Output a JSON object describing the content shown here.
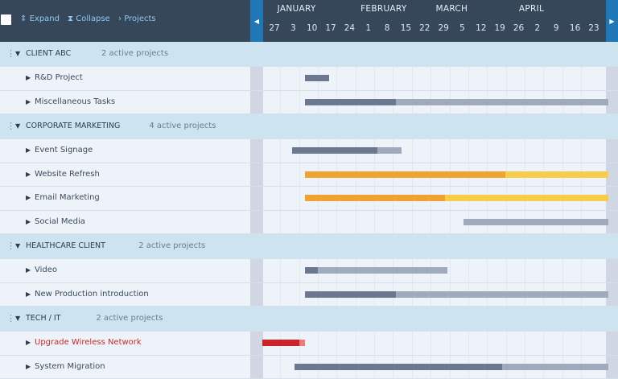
{
  "toolbar": {
    "expand": "Expand",
    "collapse": "Collapse",
    "projects": "Projects",
    "expand_icon": "up-down-chevrons",
    "collapse_icon": "collapse-chevrons",
    "projects_icon": "chevron-right"
  },
  "timeline": {
    "months": [
      {
        "label": "JANUARY",
        "date": "Jan 1"
      },
      {
        "label": "FEBRUARY",
        "date": "Feb 1"
      },
      {
        "label": "MARCH",
        "date": "Mar 1"
      },
      {
        "label": "APRIL",
        "date": "Apr 1"
      }
    ],
    "weeks": [
      "27",
      "3",
      "10",
      "17",
      "24",
      "1",
      "8",
      "15",
      "22",
      "29",
      "5",
      "12",
      "19",
      "26",
      "2",
      "9",
      "16",
      "23"
    ],
    "first_week": "Dec 27"
  },
  "colors": {
    "header": "#37475a",
    "nav": "#1f77b8",
    "group_row": "#cde3ef",
    "item_row": "#eef3fa",
    "progress_gray": "#6b7890",
    "remaining_gray": "#9fabbc",
    "progress_orange": "#f0a232",
    "remaining_yellow": "#f8cd48",
    "progress_red": "#cc2229",
    "remaining_red": "#f07878",
    "alert_text": "#c0282d"
  },
  "groups": [
    {
      "name": "CLIENT ABC",
      "count": "2 active projects",
      "items": [
        {
          "name": "R&D Project",
          "start": "Jan 12",
          "end": "Jan 21",
          "progress": 1.0,
          "color": "gray"
        },
        {
          "name": "Miscellaneous Tasks",
          "start": "Jan 12",
          "end": "May 5",
          "progress": 0.3,
          "color": "gray"
        }
      ]
    },
    {
      "name": "CORPORATE MARKETING",
      "count": "4 active projects",
      "items": [
        {
          "name": "Event Signage",
          "start": "Jan 7",
          "end": "Feb 17",
          "progress": 0.78,
          "color": "gray"
        },
        {
          "name": "Website Refresh",
          "start": "Jan 12",
          "end": "May 5",
          "progress": 0.66,
          "color": "orange"
        },
        {
          "name": "Email Marketing",
          "start": "Jan 12",
          "end": "May 5",
          "progress": 0.46,
          "color": "orange"
        },
        {
          "name": "Social Media",
          "start": "Mar 12",
          "end": "May 5",
          "progress": 0,
          "color": "gray"
        }
      ]
    },
    {
      "name": "HEALTHCARE CLIENT",
      "count": "2 active projects",
      "items": [
        {
          "name": "Video",
          "start": "Jan 12",
          "end": "Mar 6",
          "progress": 0.09,
          "color": "gray"
        },
        {
          "name": "New Production introduction",
          "start": "Jan 12",
          "end": "May 5",
          "progress": 0.3,
          "color": "gray"
        }
      ]
    },
    {
      "name": "TECH / IT",
      "count": "2 active projects",
      "items": [
        {
          "name": "Upgrade Wireless Network",
          "start": "Dec 27",
          "end": "Jan 12",
          "progress": 0.87,
          "color": "red",
          "alert": true
        },
        {
          "name": "System Migration",
          "start": "Jan 8",
          "end": "May 5",
          "progress": 0.66,
          "color": "gray"
        }
      ]
    }
  ]
}
